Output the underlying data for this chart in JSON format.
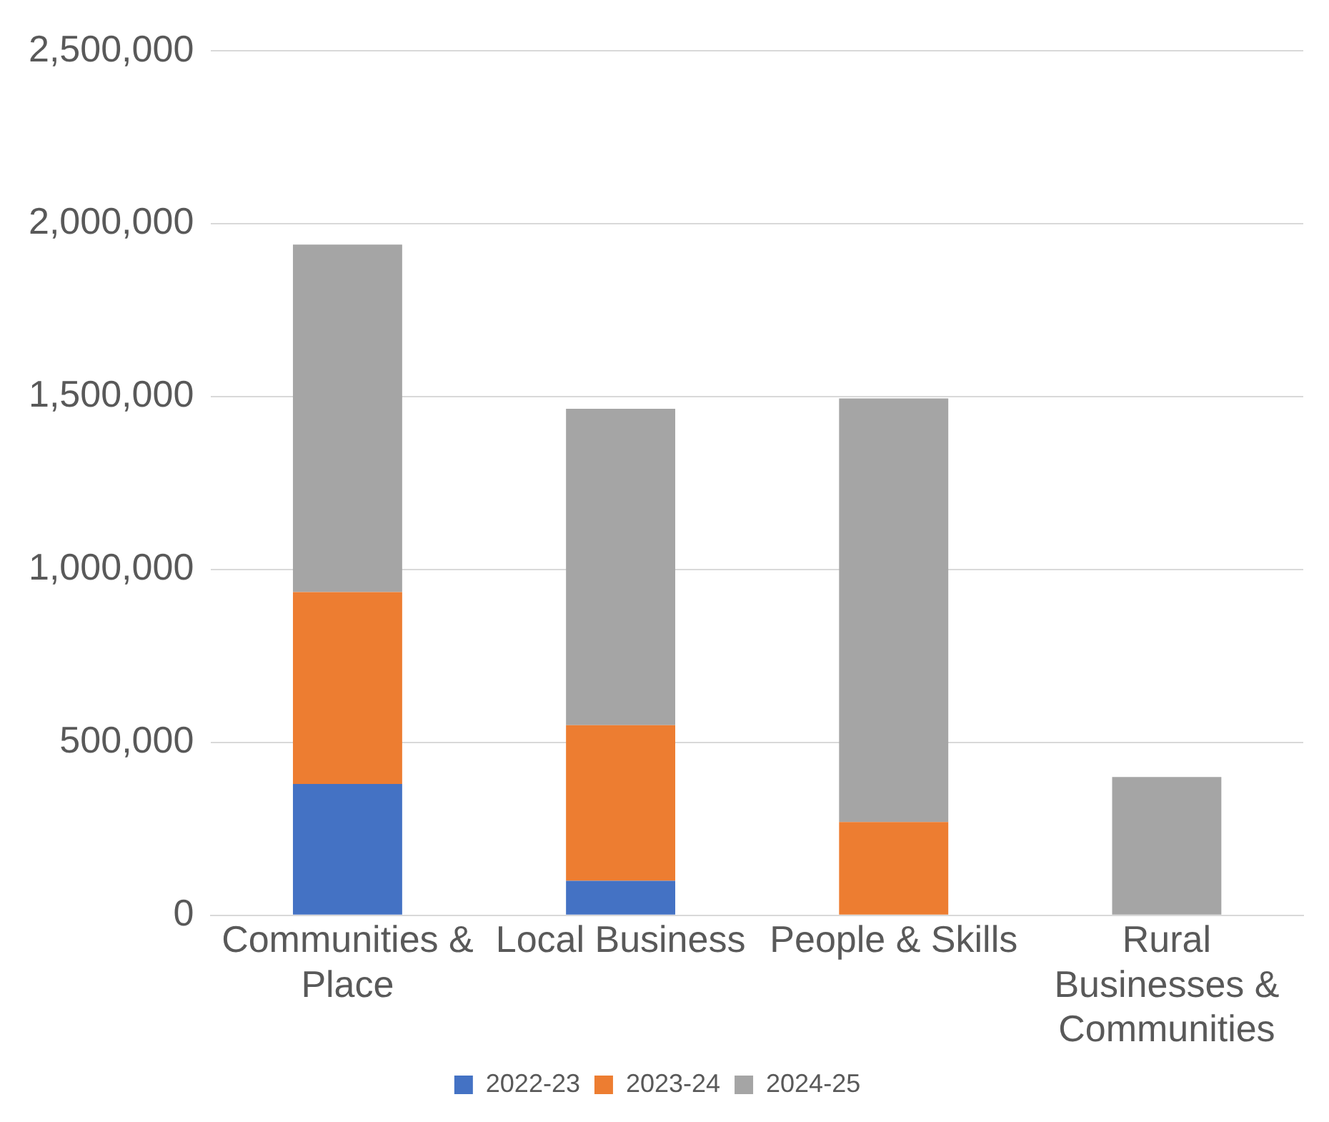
{
  "chart_data": {
    "type": "bar",
    "stacked": true,
    "categories": [
      "Communities & Place",
      "Local Business",
      "People & Skills",
      "Rural Businesses & Communities"
    ],
    "series": [
      {
        "name": "2022-23",
        "color": "#4472c4",
        "values": [
          380000,
          100000,
          null,
          null
        ]
      },
      {
        "name": "2023-24",
        "color": "#ed7d31",
        "values": [
          555000,
          450000,
          270000,
          null
        ]
      },
      {
        "name": "2024-25",
        "color": "#a5a5a5",
        "values": [
          1005000,
          915000,
          1225000,
          400000
        ]
      }
    ],
    "ylim": [
      0,
      2500000
    ],
    "yticks": [
      {
        "value": 0,
        "label": "0"
      },
      {
        "value": 500000,
        "label": "500,000"
      },
      {
        "value": 1000000,
        "label": "1,000,000"
      },
      {
        "value": 1500000,
        "label": "1,500,000"
      },
      {
        "value": 2000000,
        "label": "2,000,000"
      },
      {
        "value": 2500000,
        "label": "2,500,000"
      }
    ],
    "grid": "y",
    "legend": "bottom"
  }
}
